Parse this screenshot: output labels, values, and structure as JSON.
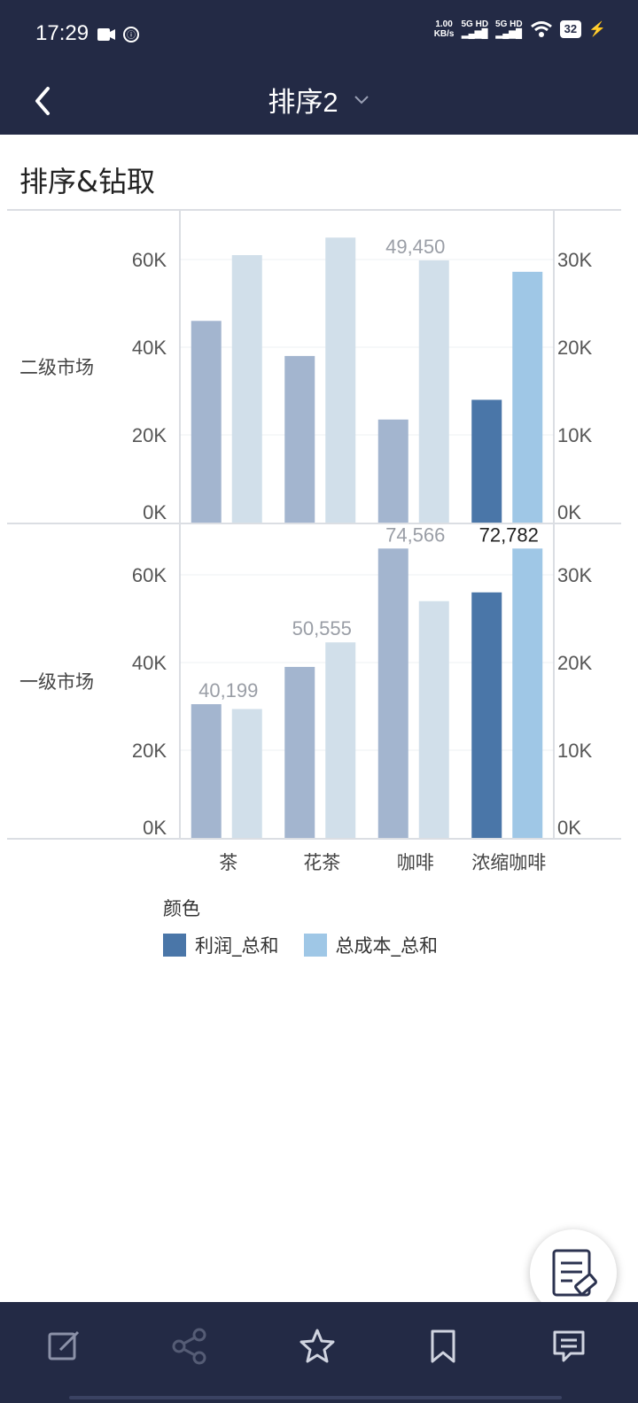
{
  "status_bar": {
    "time": "17:29",
    "network_speed": "1.00",
    "network_unit": "KB/s",
    "signal1": "5G HD",
    "signal2": "5G HD",
    "battery": "32"
  },
  "nav": {
    "title": "排序2"
  },
  "card": {
    "title": "排序&钻取"
  },
  "colors": {
    "profit_highlight": "#4a76a8",
    "cost_highlight": "#9fc7e6",
    "profit_faded": "#a3b5cf",
    "cost_faded": "#d1dfea",
    "header_bg": "#232a45"
  },
  "chart_data": {
    "type": "bar",
    "categories": [
      "茶",
      "花茶",
      "咖啡",
      "浓缩咖啡"
    ],
    "left_axis_ticks": [
      "0K",
      "20K",
      "40K",
      "60K"
    ],
    "right_axis_ticks": [
      "0K",
      "10K",
      "20K",
      "30K"
    ],
    "ylim_left": [
      0,
      70000
    ],
    "ylim_right": [
      0,
      35000
    ],
    "panels": [
      {
        "row_label": "二级市场",
        "series": [
          {
            "name": "利润_总和",
            "values": [
              46000,
              38000,
              23500,
              28000
            ]
          },
          {
            "name": "总成本_总和",
            "values": [
              30500,
              32500,
              29900,
              28600
            ]
          }
        ],
        "data_labels": {
          "total": [
            "",
            "",
            "49,450",
            ""
          ]
        }
      },
      {
        "row_label": "一级市场",
        "series": [
          {
            "name": "利润_总和",
            "values": [
              30500,
              39000,
              66000,
              56000
            ]
          },
          {
            "name": "总成本_总和",
            "values": [
              14700,
              22300,
              27000,
              33000
            ]
          }
        ],
        "data_labels": {
          "total": [
            "40,199",
            "50,555",
            "74,566",
            "72,782"
          ]
        }
      }
    ],
    "highlighted_category": "浓缩咖啡",
    "legend": {
      "title": "颜色",
      "items": [
        "利润_总和",
        "总成本_总和"
      ],
      "placement": "bottom"
    }
  }
}
